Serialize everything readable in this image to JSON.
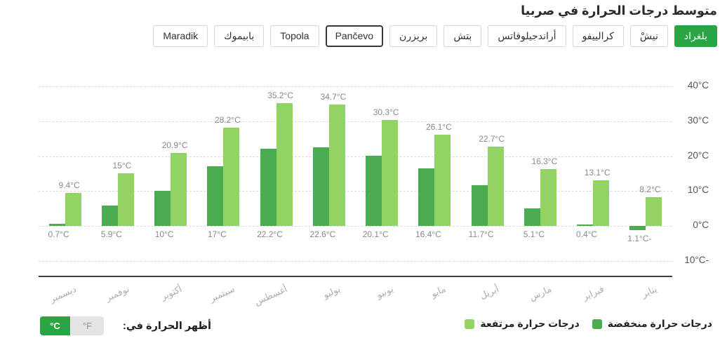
{
  "title": "متوسط درجات الحرارة في صربيا",
  "tabs": {
    "items": [
      {
        "label": "بلغراد",
        "state": "active"
      },
      {
        "label": "نيشْ",
        "state": "normal"
      },
      {
        "label": "كرالييفو",
        "state": "normal"
      },
      {
        "label": "أراندجيلوفاتس",
        "state": "normal"
      },
      {
        "label": "بتش",
        "state": "normal"
      },
      {
        "label": "بريزرن",
        "state": "normal"
      },
      {
        "label": "Pančevo",
        "state": "focused"
      },
      {
        "label": "Topola",
        "state": "normal"
      },
      {
        "label": "بابيموك",
        "state": "normal"
      },
      {
        "label": "Maradik",
        "state": "normal"
      }
    ]
  },
  "chart_data": {
    "type": "bar",
    "layout": "rtl, first category rendered rightmost",
    "categories": [
      "يناير",
      "فبراير",
      "مارس",
      "أبريل",
      "مايو",
      "يونيو",
      "يوليو",
      "أغسطس",
      "سبتمبر",
      "أكتوبر",
      "نوفمبر",
      "ديسمبر"
    ],
    "series": [
      {
        "name": "درجات حرارة مرتفعة",
        "color": "#92d464",
        "values": [
          8.2,
          13.1,
          16.3,
          22.7,
          26.1,
          30.3,
          34.7,
          35.2,
          28.2,
          20.9,
          15,
          9.4
        ],
        "labels": [
          "8.2°C",
          "13.1°C",
          "16.3°C",
          "22.7°C",
          "26.1°C",
          "30.3°C",
          "34.7°C",
          "35.2°C",
          "28.2°C",
          "20.9°C",
          "15°C",
          "9.4°C"
        ]
      },
      {
        "name": "درجات حرارة منخفضة",
        "color": "#4bab50",
        "values": [
          -1.1,
          0.4,
          5.1,
          11.7,
          16.4,
          20.1,
          22.6,
          22.2,
          17,
          10,
          5.9,
          0.7
        ],
        "labels": [
          "1.1°C-",
          "0.4°C",
          "5.1°C",
          "11.7°C",
          "16.4°C",
          "20.1°C",
          "22.6°C",
          "22.2°C",
          "17°C",
          "10°C",
          "5.9°C",
          "0.7°C"
        ]
      }
    ],
    "yticks": [
      {
        "value": 40,
        "label": "40°C"
      },
      {
        "value": 30,
        "label": "30°C"
      },
      {
        "value": 20,
        "label": "20°C"
      },
      {
        "value": 10,
        "label": "10°C"
      },
      {
        "value": 0,
        "label": "0°C"
      },
      {
        "value": -10,
        "label": "10°C-"
      }
    ],
    "ylim": [
      -10,
      40
    ],
    "grid": "dashed horizontal gridlines",
    "legend_position": "bottom-right"
  },
  "legend": {
    "high": {
      "label": "درجات حرارة مرتفعة",
      "color": "#92d464"
    },
    "low": {
      "label": "درجات حرارة منخفضة",
      "color": "#4bab50"
    }
  },
  "unit_toggle": {
    "label": "أظهر الحرارة في:",
    "celsius": "°C",
    "fahrenheit": "°F",
    "active": "°C"
  },
  "colors": {
    "accent_green": "#29a643",
    "bar_high": "#92d464",
    "bar_low": "#4bab50",
    "gridline": "#d9d9d9",
    "axis_line": "#3f3f3f",
    "month_label": "#adadad",
    "value_label": "#8a8a8a",
    "ytick_label": "#555555"
  }
}
